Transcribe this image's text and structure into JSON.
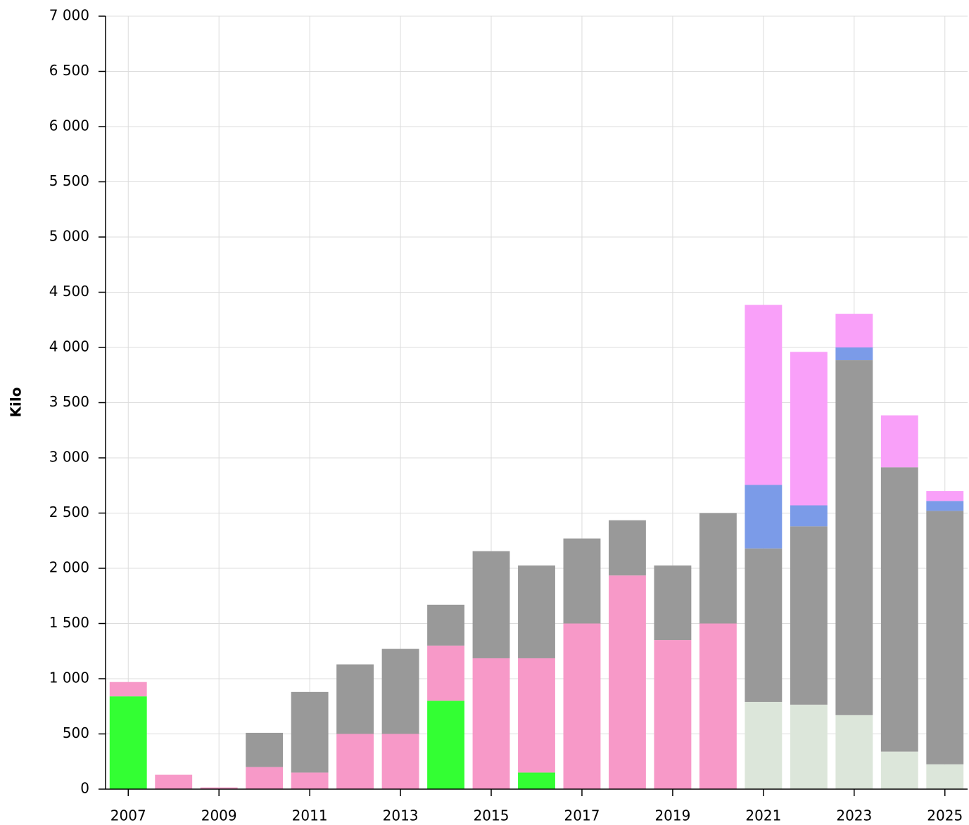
{
  "chart_data": {
    "type": "stacked_bar",
    "ylabel": "Kilo",
    "categories": [
      "2007",
      null,
      "2009",
      null,
      "2011",
      null,
      "2013",
      null,
      "2015",
      null,
      "2017",
      null,
      "2019",
      null,
      "2021",
      null,
      "2023",
      null,
      "2025"
    ],
    "series": [
      {
        "color": "#dce6da",
        "values": [
          0,
          0,
          0,
          0,
          0,
          0,
          0,
          0,
          0,
          0,
          0,
          0,
          0,
          0,
          790,
          765,
          670,
          340,
          225
        ]
      },
      {
        "color": "#33ff33",
        "values": [
          840,
          0,
          0,
          0,
          0,
          0,
          0,
          800,
          0,
          150,
          0,
          0,
          0,
          0,
          0,
          0,
          0,
          0,
          0
        ]
      },
      {
        "color": "#f799c8",
        "values": [
          130,
          130,
          15,
          200,
          150,
          500,
          500,
          500,
          1185,
          1035,
          1500,
          1935,
          1350,
          1500,
          0,
          0,
          0,
          0,
          0
        ]
      },
      {
        "color": "#999999",
        "values": [
          0,
          0,
          0,
          310,
          730,
          630,
          770,
          370,
          970,
          840,
          770,
          500,
          675,
          1000,
          1390,
          1615,
          3215,
          2575,
          2295
        ]
      },
      {
        "color": "#7b9be8",
        "values": [
          0,
          0,
          0,
          0,
          0,
          0,
          0,
          0,
          0,
          0,
          0,
          0,
          0,
          0,
          575,
          190,
          115,
          0,
          90
        ]
      },
      {
        "color": "#f9a0f9",
        "values": [
          0,
          0,
          0,
          0,
          0,
          0,
          0,
          0,
          0,
          0,
          0,
          0,
          0,
          0,
          1630,
          1390,
          305,
          470,
          90
        ]
      }
    ],
    "ylim": [
      0,
      7000
    ],
    "yticks": [
      0,
      500,
      {
        "value": 1000,
        "label": "1 000"
      },
      {
        "value": 1500,
        "label": "1 500"
      },
      {
        "value": 2000,
        "label": "2 000"
      },
      {
        "value": 2500,
        "label": "2 500"
      },
      {
        "value": 3000,
        "label": "3 000"
      },
      {
        "value": 3500,
        "label": "3 500"
      },
      {
        "value": 4000,
        "label": "4 000"
      },
      {
        "value": 4500,
        "label": "4 500"
      },
      {
        "value": 5000,
        "label": "5 000"
      },
      {
        "value": 5500,
        "label": "5 500"
      },
      {
        "value": 6000,
        "label": "6 000"
      },
      {
        "value": 6500,
        "label": "6 500"
      },
      {
        "value": 7000,
        "label": "7 000"
      }
    ],
    "grid": true
  }
}
